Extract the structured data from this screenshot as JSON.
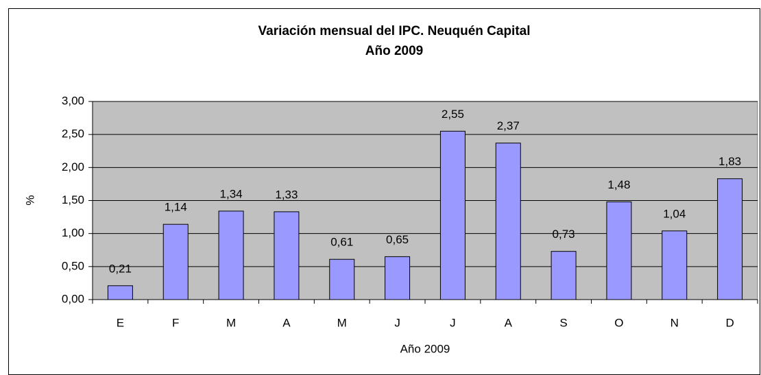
{
  "chart_data": {
    "type": "bar",
    "title": "Variación mensual del IPC. Neuquén Capital",
    "subtitle": "Año 2009",
    "y_label": "%",
    "x_label": "Año 2009",
    "categories": [
      "E",
      "F",
      "M",
      "A",
      "M",
      "J",
      "J",
      "A",
      "S",
      "O",
      "N",
      "D"
    ],
    "values": [
      0.21,
      1.14,
      1.34,
      1.33,
      0.61,
      0.65,
      2.55,
      2.37,
      0.73,
      1.48,
      1.04,
      1.83
    ],
    "value_labels": [
      "0,21",
      "1,14",
      "1,34",
      "1,33",
      "0,61",
      "0,65",
      "2,55",
      "2,37",
      "0,73",
      "1,48",
      "1,04",
      "1,83"
    ],
    "color": "#9999ff",
    "ylim": [
      0,
      3
    ],
    "yticks": [
      {
        "value": 0,
        "label": "0,00"
      },
      {
        "value": 0.5,
        "label": "0,50"
      },
      {
        "value": 1,
        "label": "1,00"
      },
      {
        "value": 1.5,
        "label": "1,50"
      },
      {
        "value": 2,
        "label": "2,00"
      },
      {
        "value": 2.5,
        "label": "2,50"
      },
      {
        "value": 3,
        "label": "3,00"
      }
    ],
    "grid": true
  }
}
